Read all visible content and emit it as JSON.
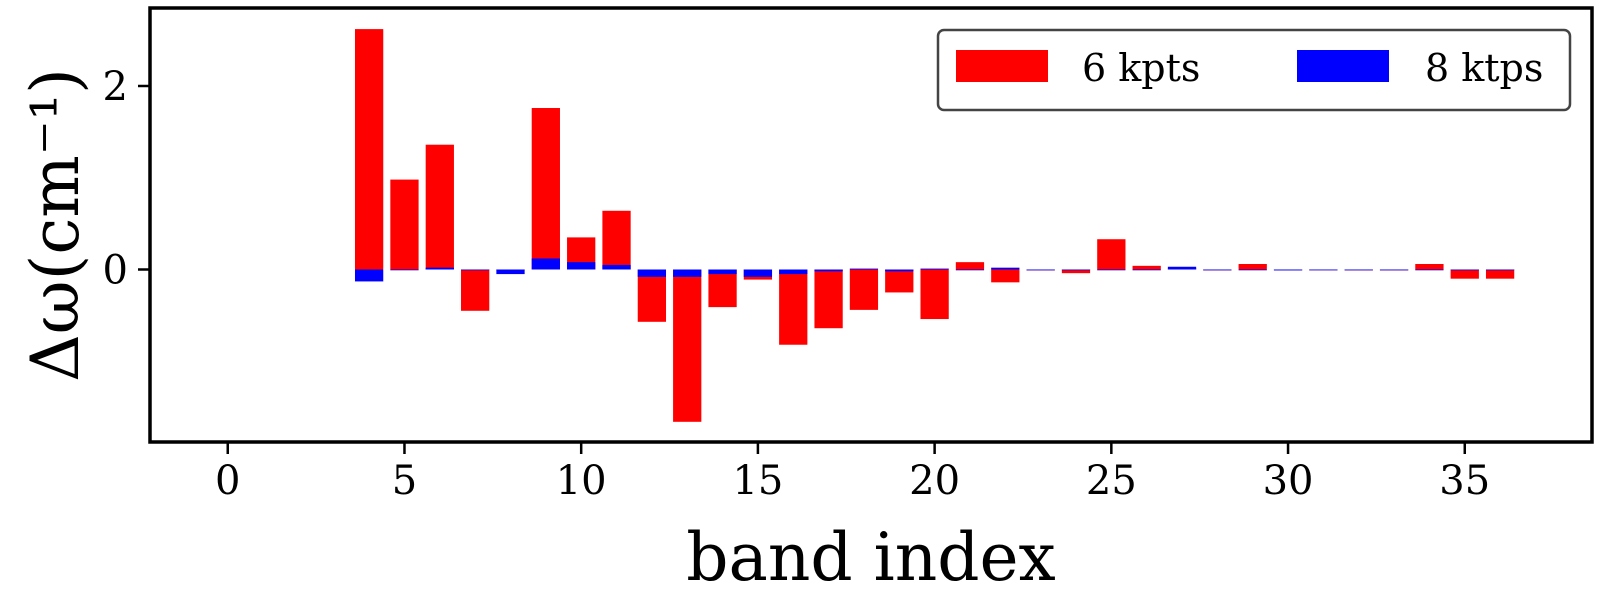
{
  "chart_data": {
    "type": "bar",
    "xlabel": "band index",
    "ylabel": "Δω(cm⁻¹)",
    "xlim": [
      -2.2,
      38.6
    ],
    "ylim": [
      -1.88,
      2.85
    ],
    "xticks": [
      0,
      5,
      10,
      15,
      20,
      25,
      30,
      35
    ],
    "yticks": [
      0,
      2
    ],
    "legend_position": "top-right",
    "categories": [
      4,
      5,
      6,
      7,
      8,
      9,
      10,
      11,
      12,
      13,
      14,
      15,
      16,
      17,
      18,
      19,
      20,
      21,
      22,
      23,
      24,
      25,
      26,
      27,
      28,
      29,
      30,
      31,
      32,
      33,
      34,
      35,
      36
    ],
    "series": [
      {
        "name": "6 kpts",
        "color": "#ff0000",
        "values": [
          2.62,
          0.98,
          1.36,
          -0.45,
          0.0,
          1.76,
          0.35,
          0.64,
          -0.57,
          -1.66,
          -0.41,
          -0.11,
          -0.82,
          -0.64,
          -0.44,
          -0.25,
          -0.54,
          0.08,
          -0.14,
          -0.01,
          -0.04,
          0.33,
          0.04,
          0.02,
          -0.01,
          0.06,
          0.0,
          0.0,
          -0.01,
          -0.01,
          0.06,
          -0.1,
          -0.1
        ]
      },
      {
        "name": "8 ktps",
        "color": "#0000ff",
        "values": [
          -0.13,
          0.0,
          0.02,
          0.0,
          -0.05,
          0.12,
          0.08,
          0.05,
          -0.08,
          -0.08,
          -0.05,
          -0.08,
          -0.05,
          -0.02,
          0.01,
          -0.02,
          0.01,
          0.0,
          0.02,
          0.0,
          0.0,
          0.0,
          0.0,
          0.03,
          0.0,
          0.0,
          -0.01,
          0.0,
          0.0,
          0.0,
          0.0,
          0.0,
          0.0
        ]
      }
    ]
  }
}
